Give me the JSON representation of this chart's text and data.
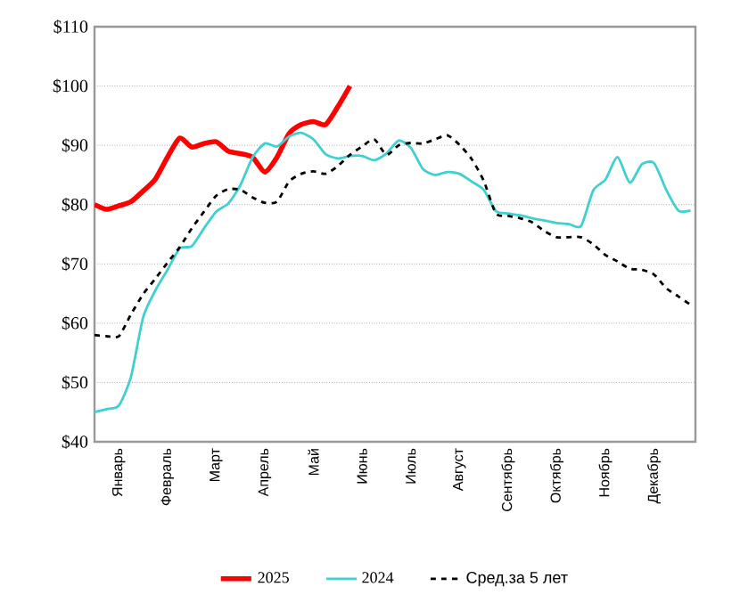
{
  "chart_data": {
    "type": "line",
    "ylim": [
      40,
      110
    ],
    "categories": [
      null,
      null,
      "Январь",
      null,
      null,
      null,
      "Февраль",
      null,
      null,
      null,
      "Март",
      null,
      null,
      null,
      "Апрель",
      null,
      null,
      null,
      "Май",
      null,
      null,
      null,
      "Июнь",
      null,
      null,
      null,
      "Июль",
      null,
      null,
      null,
      "Август",
      null,
      null,
      null,
      "Сентябрь",
      null,
      null,
      null,
      "Октябрь",
      null,
      null,
      null,
      "Ноябрь",
      null,
      null,
      null,
      "Декабрь",
      null,
      null,
      null
    ],
    "yticks": [
      {
        "value": 40,
        "label": "$40"
      },
      {
        "value": 50,
        "label": "$50"
      },
      {
        "value": 60,
        "label": "$60"
      },
      {
        "value": 70,
        "label": "$70"
      },
      {
        "value": 80,
        "label": "$80"
      },
      {
        "value": 90,
        "label": "$90"
      },
      {
        "value": 100,
        "label": "$100"
      },
      {
        "value": 110,
        "label": "$110"
      }
    ],
    "grid": "y",
    "legend": "bottom",
    "series": [
      {
        "name": "2025",
        "color": "#ff0000",
        "line_style": "solid",
        "values": [
          80.0,
          79.2,
          79.8,
          80.5,
          82.3,
          84.3,
          88.0,
          91.2,
          89.7,
          90.3,
          90.6,
          89.0,
          88.6,
          88.0,
          85.5,
          88.0,
          92.0,
          93.5,
          94.0,
          93.5,
          96.5,
          100.0,
          null,
          null,
          null,
          null,
          null,
          null,
          null,
          null,
          null,
          null,
          null,
          null,
          null,
          null,
          null,
          null,
          null,
          null,
          null,
          null,
          null,
          null,
          null,
          null,
          null,
          null,
          null,
          null
        ]
      },
      {
        "name": "2024",
        "color": "#40d0d0",
        "line_style": "solid",
        "values": [
          45.0,
          45.5,
          46.1,
          51.0,
          61.0,
          65.5,
          69.0,
          72.6,
          73.0,
          76.0,
          78.8,
          80.2,
          83.3,
          88.0,
          90.3,
          89.8,
          91.5,
          92.1,
          91.0,
          88.5,
          87.8,
          88.2,
          88.2,
          87.5,
          88.6,
          90.8,
          89.6,
          86.0,
          85.0,
          85.5,
          85.2,
          83.9,
          82.5,
          78.9,
          78.5,
          78.2,
          77.7,
          77.3,
          76.9,
          76.7,
          76.4,
          82.4,
          84.2,
          88.0,
          83.7,
          86.8,
          87.0,
          82.5,
          79.0,
          79.0
        ]
      },
      {
        "name": "Сред.за 5 лет",
        "color": "#000000",
        "line_style": "dashed",
        "values": [
          58.0,
          57.8,
          57.8,
          61.5,
          64.9,
          67.5,
          70.2,
          72.8,
          76.0,
          78.8,
          81.5,
          82.6,
          82.5,
          81.2,
          80.3,
          80.5,
          83.9,
          85.2,
          85.6,
          85.2,
          86.5,
          88.4,
          89.8,
          91.0,
          88.4,
          90.0,
          90.4,
          90.3,
          91.0,
          91.7,
          90.1,
          87.7,
          84.0,
          78.5,
          78.1,
          77.7,
          77.0,
          75.5,
          74.5,
          74.5,
          74.5,
          73.3,
          71.5,
          70.4,
          69.2,
          69.0,
          68.2,
          65.9,
          64.5,
          63.1
        ]
      }
    ]
  }
}
